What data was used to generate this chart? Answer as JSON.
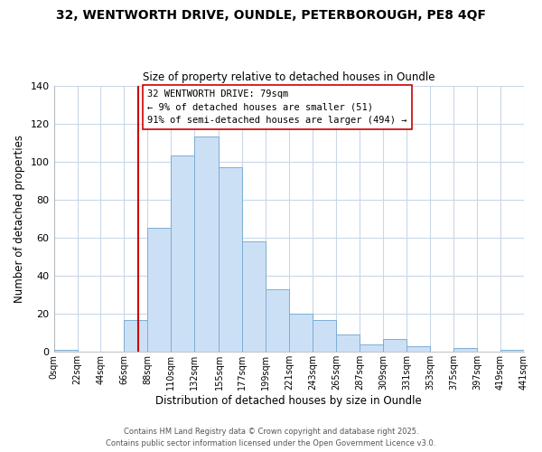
{
  "title": "32, WENTWORTH DRIVE, OUNDLE, PETERBOROUGH, PE8 4QF",
  "subtitle": "Size of property relative to detached houses in Oundle",
  "xlabel": "Distribution of detached houses by size in Oundle",
  "ylabel": "Number of detached properties",
  "bar_color": "#cce0f5",
  "bar_edge_color": "#7dadd4",
  "background_color": "#ffffff",
  "grid_color": "#c8d8e8",
  "bin_edges": [
    0,
    22,
    44,
    66,
    88,
    110,
    132,
    155,
    177,
    199,
    221,
    243,
    265,
    287,
    309,
    331,
    353,
    375,
    397,
    419,
    441
  ],
  "bin_labels": [
    "0sqm",
    "22sqm",
    "44sqm",
    "66sqm",
    "88sqm",
    "110sqm",
    "132sqm",
    "155sqm",
    "177sqm",
    "199sqm",
    "221sqm",
    "243sqm",
    "265sqm",
    "287sqm",
    "309sqm",
    "331sqm",
    "353sqm",
    "375sqm",
    "397sqm",
    "419sqm",
    "441sqm"
  ],
  "counts": [
    1,
    0,
    0,
    17,
    65,
    103,
    113,
    97,
    58,
    33,
    20,
    17,
    9,
    4,
    7,
    3,
    0,
    2,
    0,
    1
  ],
  "ylim": [
    0,
    140
  ],
  "yticks": [
    0,
    20,
    40,
    60,
    80,
    100,
    120,
    140
  ],
  "vline_x": 79,
  "vline_color": "#cc0000",
  "annotation_line1": "32 WENTWORTH DRIVE: 79sqm",
  "annotation_line2": "← 9% of detached houses are smaller (51)",
  "annotation_line3": "91% of semi-detached houses are larger (494) →",
  "annotation_box_color": "#ffffff",
  "annotation_box_edge": "#cc0000",
  "footer1": "Contains HM Land Registry data © Crown copyright and database right 2025.",
  "footer2": "Contains public sector information licensed under the Open Government Licence v3.0."
}
